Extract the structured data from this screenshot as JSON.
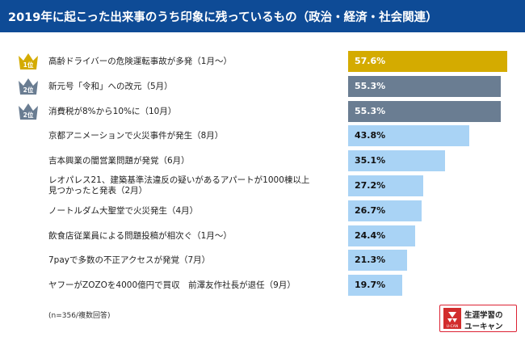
{
  "title": "2019年に起こった出来事のうち印象に残っているもの（政治・経済・社会関連）",
  "note": "(n=356/複数回答)",
  "logo": {
    "line1": "生涯学習の",
    "line2": "ユーキャン",
    "mark_text": "U-CAN"
  },
  "colors": {
    "header": "#0e4b96",
    "first": "#d4ab00",
    "second": "#6a7d92",
    "rest": "#a9d3f5"
  },
  "ranks": [
    {
      "label": "1位",
      "color": "#d4ab00"
    },
    {
      "label": "2位",
      "color": "#6a7d92"
    },
    {
      "label": "2位",
      "color": "#6a7d92"
    }
  ],
  "chart_data": {
    "type": "bar",
    "orientation": "horizontal",
    "title": "2019年に起こった出来事のうち印象に残っているもの（政治・経済・社会関連）",
    "categories": [
      [
        "高齢ドライバーの危険運転事故が多発（1月〜）"
      ],
      [
        "新元号「令和」への改元（5月）"
      ],
      [
        "消費税が8%から10%に（10月）"
      ],
      [
        "京都アニメーションで火災事件が発生（8月）"
      ],
      [
        "吉本興業の闇営業問題が発覚（6月）"
      ],
      [
        "レオパレス21、建築基準法違反の疑いがあるアパートが1000棟以上",
        "見つかったと発表（2月）"
      ],
      [
        "ノートルダム大聖堂で火災発生（4月）"
      ],
      [
        "飲食店従業員による問題投稿が相次ぐ（1月〜）"
      ],
      [
        "7payで多数の不正アクセスが発覚（7月）"
      ],
      [
        "ヤフーがZOZOを4000億円で買収　前澤友作社長が退任（9月）"
      ]
    ],
    "values": [
      57.6,
      55.3,
      55.3,
      43.8,
      35.1,
      27.2,
      26.7,
      24.4,
      21.3,
      19.7
    ],
    "value_labels": [
      "57.6%",
      "55.3%",
      "55.3%",
      "43.8%",
      "35.1%",
      "27.2%",
      "26.7%",
      "24.4%",
      "21.3%",
      "19.7%"
    ],
    "xlim": [
      0,
      57.6
    ],
    "xlabel": "",
    "ylabel": ""
  }
}
